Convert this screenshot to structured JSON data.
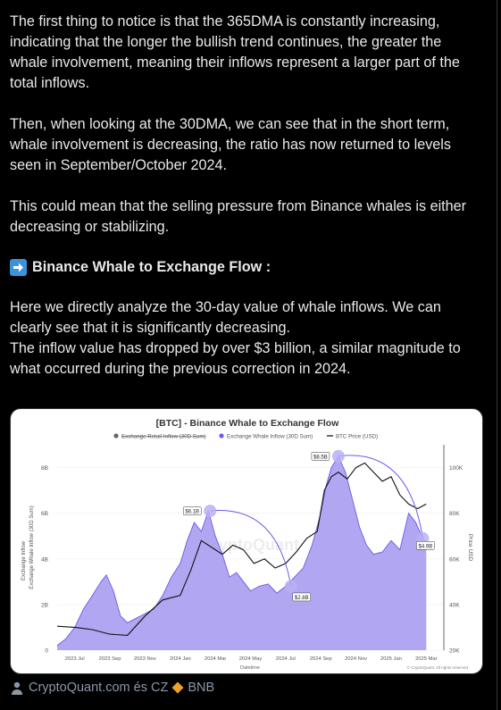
{
  "post": {
    "p1": "The first thing to notice is that the 365DMA is constantly increasing, indicating that the longer the bullish trend continues, the greater the whale involvement, meaning their inflows represent a larger part of the total inflows.",
    "p2": "Then, when looking at the 30DMA, we can see that in the short term, whale involvement is decreasing, the ratio has now returned to levels seen in September/October 2024.",
    "p3": "This could mean that the selling pressure from Binance whales is either decreasing or stabilizing.",
    "heading": "Binance Whale to Exchange Flow :",
    "p4a": "Here we directly analyze the 30-day value of whale inflows. We can clearly see that it is significantly decreasing.",
    "p4b": "The inflow value has dropped by over $3 billion, a similar magnitude to what occurred during the previous correction in 2024."
  },
  "footer": {
    "credit_a": "CryptoQuant.com és CZ",
    "credit_b": "BNB"
  },
  "colors": {
    "whale_fill": "#a89cf0",
    "whale_line": "#6b5ce7",
    "btc_line": "#111111",
    "retail": "#666666",
    "highlight": "#b9b0f5"
  },
  "chart_data": {
    "type": "area",
    "title": "[BTC] - Binance Whale to Exchange Flow",
    "legend": [
      "Exchange Retail Inflow (30D Sum)",
      "Exchange Whale Inflow (30D Sum)",
      "BTC Price (USD)"
    ],
    "legend_position": "top",
    "xlabel": "Datetime",
    "ylabel_left": "Exchange Whale Inflow (30D Sum)",
    "ylabel_left_outer": "Exchange Inflow",
    "ylabel_right": "Price USD",
    "x_ticks": [
      "2023 Jul",
      "2023 Sep",
      "2023 Nov",
      "2024 Jan",
      "2024 Mar",
      "2024 May",
      "2024 Jul",
      "2024 Sep",
      "2024 Nov",
      "2025 Jan",
      "2025 Mar"
    ],
    "y_left_ticks": [
      "0",
      "2B",
      "4B",
      "6B",
      "8B"
    ],
    "y_right_ticks": [
      "20K",
      "40K",
      "60K",
      "80K",
      "100K"
    ],
    "ylim_left": [
      0,
      9
    ],
    "ylim_right": [
      20000,
      110000
    ],
    "xlim": [
      0,
      22
    ],
    "annotations": [
      {
        "label": "$6.1B",
        "x": 8.7,
        "y": 6.1
      },
      {
        "label": "$2.8B",
        "x": 13.3,
        "y": 2.8
      },
      {
        "label": "$8.5B",
        "x": 16.0,
        "y": 8.5
      },
      {
        "label": "$4.9B",
        "x": 20.8,
        "y": 4.9
      }
    ],
    "watermark": "CryptoQuant",
    "copyright": "© CryptoQuant. All rights reserved",
    "series": [
      {
        "name": "Exchange Whale Inflow (30D Sum)",
        "x": [
          0,
          0.5,
          1.0,
          1.5,
          2.0,
          2.5,
          2.8,
          3.2,
          3.6,
          4.0,
          4.5,
          5.0,
          5.5,
          6.0,
          6.5,
          7.0,
          7.4,
          7.8,
          8.2,
          8.6,
          9.0,
          9.4,
          9.8,
          10.2,
          10.6,
          11.0,
          11.5,
          12.0,
          12.5,
          13.0,
          13.5,
          14.0,
          14.5,
          15.0,
          15.3,
          15.6,
          16.0,
          16.4,
          16.8,
          17.2,
          17.6,
          18.0,
          18.5,
          19.0,
          19.5,
          20.0,
          20.4,
          20.8,
          21.0
        ],
        "values": [
          0.2,
          0.5,
          1.0,
          1.8,
          2.4,
          3.0,
          3.3,
          2.6,
          1.5,
          1.2,
          1.4,
          1.6,
          1.8,
          2.4,
          3.2,
          3.8,
          4.8,
          5.6,
          5.2,
          6.1,
          5.0,
          4.2,
          3.2,
          3.4,
          3.0,
          2.6,
          2.8,
          2.9,
          2.5,
          2.8,
          3.2,
          3.6,
          4.6,
          6.0,
          7.2,
          8.0,
          8.5,
          7.8,
          6.6,
          5.4,
          4.6,
          4.2,
          4.3,
          4.8,
          4.4,
          6.0,
          5.6,
          4.9,
          4.7
        ]
      },
      {
        "name": "BTC Price (USD)",
        "x": [
          0,
          1,
          2,
          3,
          4,
          5,
          6,
          7,
          7.6,
          8.2,
          8.8,
          9.4,
          10,
          10.6,
          11.2,
          11.8,
          12.4,
          13,
          13.6,
          14.2,
          14.8,
          15.2,
          15.6,
          16,
          16.5,
          17,
          17.5,
          18,
          18.5,
          19,
          19.5,
          20,
          20.5,
          21
        ],
        "values": [
          30500,
          30000,
          29000,
          27000,
          26500,
          35000,
          42000,
          44000,
          55000,
          68000,
          65000,
          62000,
          66000,
          64000,
          58000,
          60000,
          56000,
          58000,
          63000,
          69000,
          72000,
          90000,
          96000,
          98000,
          95000,
          100000,
          102000,
          98000,
          94000,
          96000,
          88000,
          84000,
          82000,
          84000
        ]
      }
    ]
  }
}
